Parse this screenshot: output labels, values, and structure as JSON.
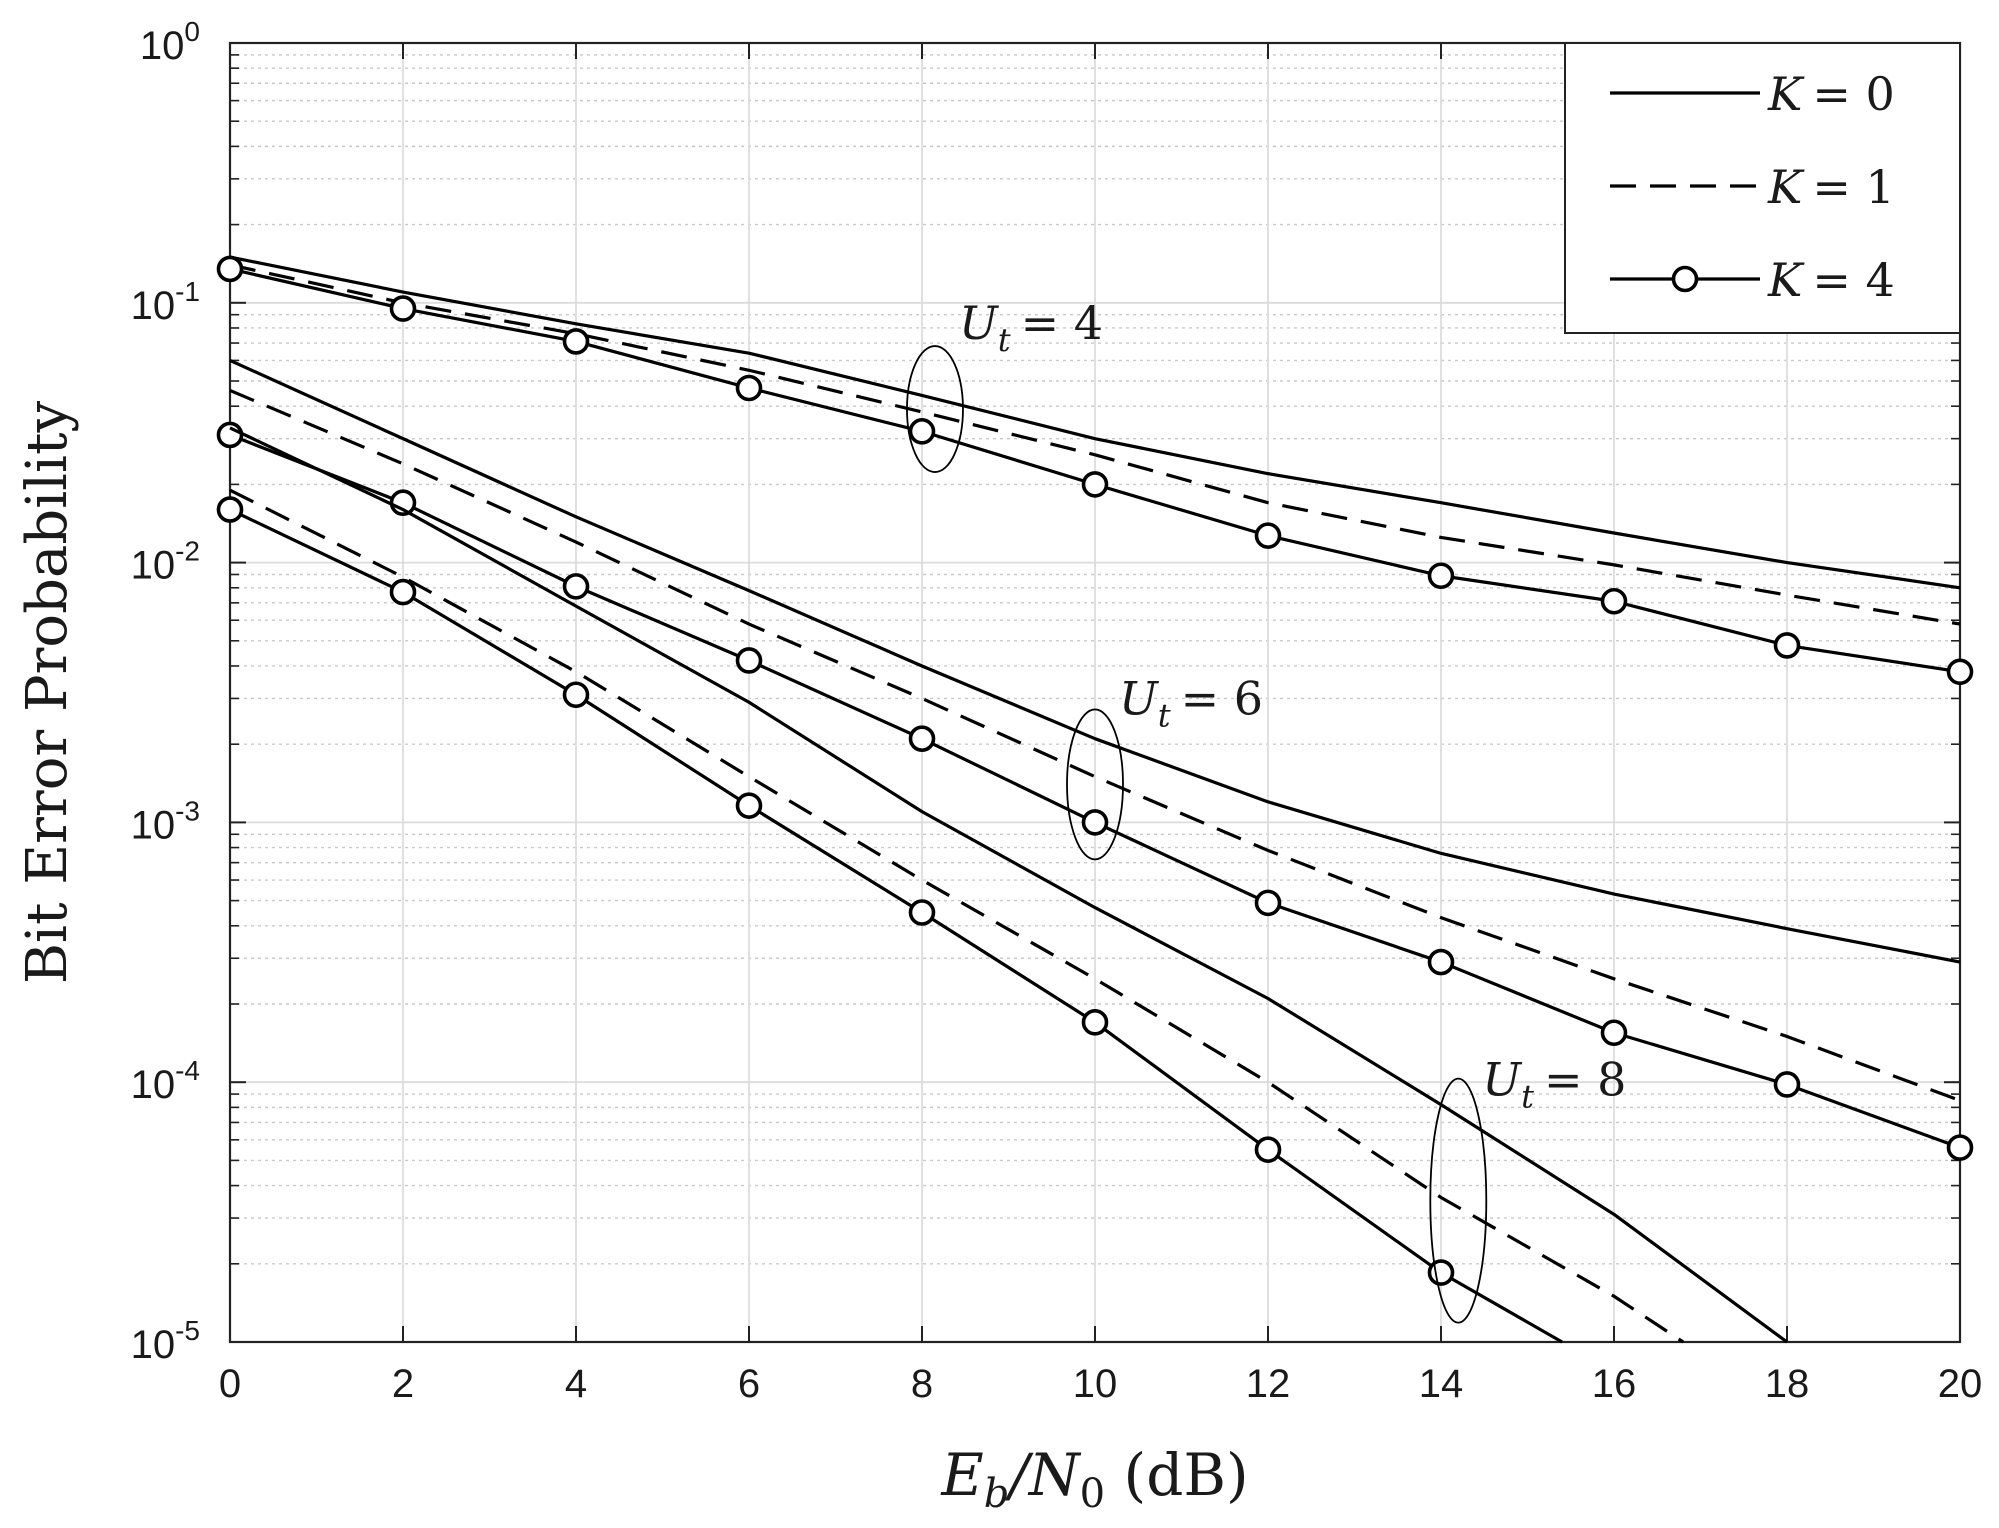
{
  "chart_data": {
    "type": "line",
    "xlabel": "E_b/N_0 (dB)",
    "xlabel_parts": {
      "main": "E",
      "sub1": "b",
      "slash": "/N",
      "sub2": "0",
      "unit": " (dB)"
    },
    "ylabel": "Bit Error Probability",
    "xlim": [
      0,
      20
    ],
    "ylim": [
      1e-05,
      1
    ],
    "yscale": "log",
    "grid": true,
    "minor_grid": true,
    "x_ticks": [
      0,
      2,
      4,
      6,
      8,
      10,
      12,
      14,
      16,
      18,
      20
    ],
    "y_ticks": [
      {
        "value": 1,
        "base": "10",
        "exp": "0"
      },
      {
        "value": 0.1,
        "base": "10",
        "exp": "-1"
      },
      {
        "value": 0.01,
        "base": "10",
        "exp": "-2"
      },
      {
        "value": 0.001,
        "base": "10",
        "exp": "-3"
      },
      {
        "value": 0.0001,
        "base": "10",
        "exp": "-4"
      },
      {
        "value": 1e-05,
        "base": "10",
        "exp": "-5"
      }
    ],
    "legend": {
      "placement": "top-right",
      "entries": [
        {
          "label_var": "K",
          "label_val": "= 0",
          "style": "solid"
        },
        {
          "label_var": "K",
          "label_val": "= 1",
          "style": "dashed"
        },
        {
          "label_var": "K",
          "label_val": "= 4",
          "style": "solid-circle"
        }
      ]
    },
    "series": [
      {
        "group": "U_t = 4",
        "k": 0,
        "style": "solid",
        "x": [
          0,
          2,
          4,
          6,
          8,
          10,
          12,
          14,
          16,
          18,
          20
        ],
        "y": [
          0.15,
          0.11,
          0.083,
          0.064,
          0.044,
          0.03,
          0.022,
          0.017,
          0.013,
          0.01,
          0.008
        ]
      },
      {
        "group": "U_t = 4",
        "k": 1,
        "style": "dashed",
        "x": [
          0,
          2,
          4,
          6,
          8,
          10,
          12,
          14,
          16,
          18,
          20
        ],
        "y": [
          0.14,
          0.1,
          0.076,
          0.055,
          0.038,
          0.026,
          0.017,
          0.0125,
          0.0098,
          0.0075,
          0.0058
        ]
      },
      {
        "group": "U_t = 4",
        "k": 4,
        "style": "solid-circle",
        "x": [
          0,
          2,
          4,
          6,
          8,
          10,
          12,
          14,
          16,
          18,
          20
        ],
        "y": [
          0.135,
          0.095,
          0.071,
          0.047,
          0.032,
          0.02,
          0.0127,
          0.0089,
          0.0071,
          0.0048,
          0.0038
        ]
      },
      {
        "group": "U_t = 6",
        "k": 0,
        "style": "solid",
        "x": [
          0,
          2,
          4,
          6,
          8,
          10,
          12,
          14,
          16,
          18,
          20
        ],
        "y": [
          0.06,
          0.03,
          0.015,
          0.0078,
          0.004,
          0.0021,
          0.0012,
          0.00076,
          0.00053,
          0.00039,
          0.00029
        ]
      },
      {
        "group": "U_t = 6",
        "k": 1,
        "style": "dashed",
        "x": [
          0,
          2,
          4,
          6,
          8,
          10,
          12,
          14,
          16,
          18,
          20
        ],
        "y": [
          0.046,
          0.024,
          0.012,
          0.0058,
          0.003,
          0.0015,
          0.00078,
          0.00043,
          0.00025,
          0.00015,
          8.5e-05
        ]
      },
      {
        "group": "U_t = 6",
        "k": 4,
        "style": "solid-circle",
        "x": [
          0,
          2,
          4,
          6,
          8,
          10,
          12,
          14,
          16,
          18,
          20
        ],
        "y": [
          0.031,
          0.017,
          0.0081,
          0.0042,
          0.0021,
          0.001,
          0.00049,
          0.00029,
          0.000155,
          9.8e-05,
          5.6e-05
        ]
      },
      {
        "group": "U_t = 8",
        "k": 0,
        "style": "solid",
        "x": [
          0,
          2,
          4,
          6,
          8,
          10,
          12,
          14,
          16,
          18
        ],
        "y": [
          0.033,
          0.016,
          0.0068,
          0.0029,
          0.0011,
          0.00047,
          0.00021,
          8.2e-05,
          3.1e-05,
          1e-05
        ]
      },
      {
        "group": "U_t = 8",
        "k": 1,
        "style": "dashed",
        "x": [
          0,
          2,
          4,
          6,
          8,
          10,
          12,
          14,
          16,
          16.8
        ],
        "y": [
          0.019,
          0.0088,
          0.0038,
          0.0015,
          0.0006,
          0.00025,
          0.0001,
          3.6e-05,
          1.5e-05,
          1e-05
        ]
      },
      {
        "group": "U_t = 8",
        "k": 4,
        "style": "solid-circle",
        "x": [
          0,
          2,
          4,
          6,
          8,
          10,
          12,
          14,
          15.4
        ],
        "y": [
          0.016,
          0.0077,
          0.0031,
          0.00116,
          0.00045,
          0.00017,
          5.5e-05,
          1.85e-05,
          1e-05
        ]
      }
    ],
    "annotations": [
      {
        "var": "U",
        "sub": "t",
        "val": "= 4",
        "x": 8.15,
        "y": 0.039
      },
      {
        "var": "U",
        "sub": "t",
        "val": "= 6",
        "x": 10.0,
        "y": 0.0014
      },
      {
        "var": "U",
        "sub": "t",
        "val": "= 8",
        "x": 14.2,
        "y": 3.5e-05
      }
    ]
  }
}
